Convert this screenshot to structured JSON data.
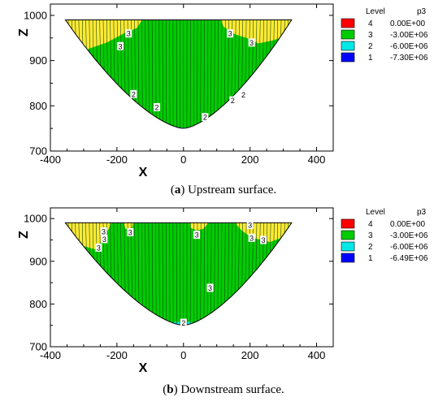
{
  "chart_data": [
    {
      "type": "contour",
      "caption_letter": "a",
      "caption_text": "Upstream surface.",
      "xlabel": "X",
      "ylabel": "Z",
      "xlim": [
        -400,
        450
      ],
      "ylim": [
        700,
        1025
      ],
      "xticks": [
        "-400",
        "-200",
        "0",
        "200",
        "400"
      ],
      "yticks": [
        "700",
        "800",
        "900",
        "1000"
      ],
      "legend": {
        "header_level": "Level",
        "header_value": "p3",
        "entries": [
          {
            "level": "4",
            "value": "0.00E+00",
            "color": "#ff0000"
          },
          {
            "level": "3",
            "value": "-3.00E+06",
            "color": "#00cc00"
          },
          {
            "level": "2",
            "value": "-6.00E+06",
            "color": "#00e8e8"
          },
          {
            "level": "1",
            "value": "-7.30E+06",
            "color": "#0000ff"
          }
        ]
      },
      "region_labels": [
        {
          "text": "3",
          "x": -165,
          "z": 960
        },
        {
          "text": "3",
          "x": -190,
          "z": 932
        },
        {
          "text": "3",
          "x": 140,
          "z": 960
        },
        {
          "text": "3",
          "x": 205,
          "z": 940
        },
        {
          "text": "2",
          "x": -150,
          "z": 826
        },
        {
          "text": "2",
          "x": -80,
          "z": 797
        },
        {
          "text": "2",
          "x": 65,
          "z": 775
        },
        {
          "text": "2",
          "x": 148,
          "z": 812
        },
        {
          "text": "2",
          "x": 180,
          "z": 825
        }
      ]
    },
    {
      "type": "contour",
      "caption_letter": "b",
      "caption_text": "Downstream surface.",
      "xlabel": "X",
      "ylabel": "Z",
      "xlim": [
        -400,
        450
      ],
      "ylim": [
        700,
        1025
      ],
      "xticks": [
        "-400",
        "-200",
        "0",
        "200",
        "400"
      ],
      "yticks": [
        "700",
        "800",
        "900",
        "1000"
      ],
      "legend": {
        "header_level": "Level",
        "header_value": "p3",
        "entries": [
          {
            "level": "4",
            "value": "0.00E+00",
            "color": "#ff0000"
          },
          {
            "level": "3",
            "value": "-3.00E+06",
            "color": "#00cc00"
          },
          {
            "level": "2",
            "value": "-6.00E+06",
            "color": "#00e8e8"
          },
          {
            "level": "1",
            "value": "-6.49E+06",
            "color": "#0000ff"
          }
        ]
      },
      "region_labels": [
        {
          "text": "3",
          "x": -240,
          "z": 970
        },
        {
          "text": "3",
          "x": -238,
          "z": 952
        },
        {
          "text": "3",
          "x": -255,
          "z": 932
        },
        {
          "text": "3",
          "x": -160,
          "z": 968
        },
        {
          "text": "3",
          "x": 40,
          "z": 962
        },
        {
          "text": "3",
          "x": 200,
          "z": 985
        },
        {
          "text": "3",
          "x": 205,
          "z": 955
        },
        {
          "text": "3",
          "x": 240,
          "z": 950
        },
        {
          "text": "3",
          "x": 80,
          "z": 838
        },
        {
          "text": "2",
          "x": 0,
          "z": 756
        }
      ]
    }
  ]
}
